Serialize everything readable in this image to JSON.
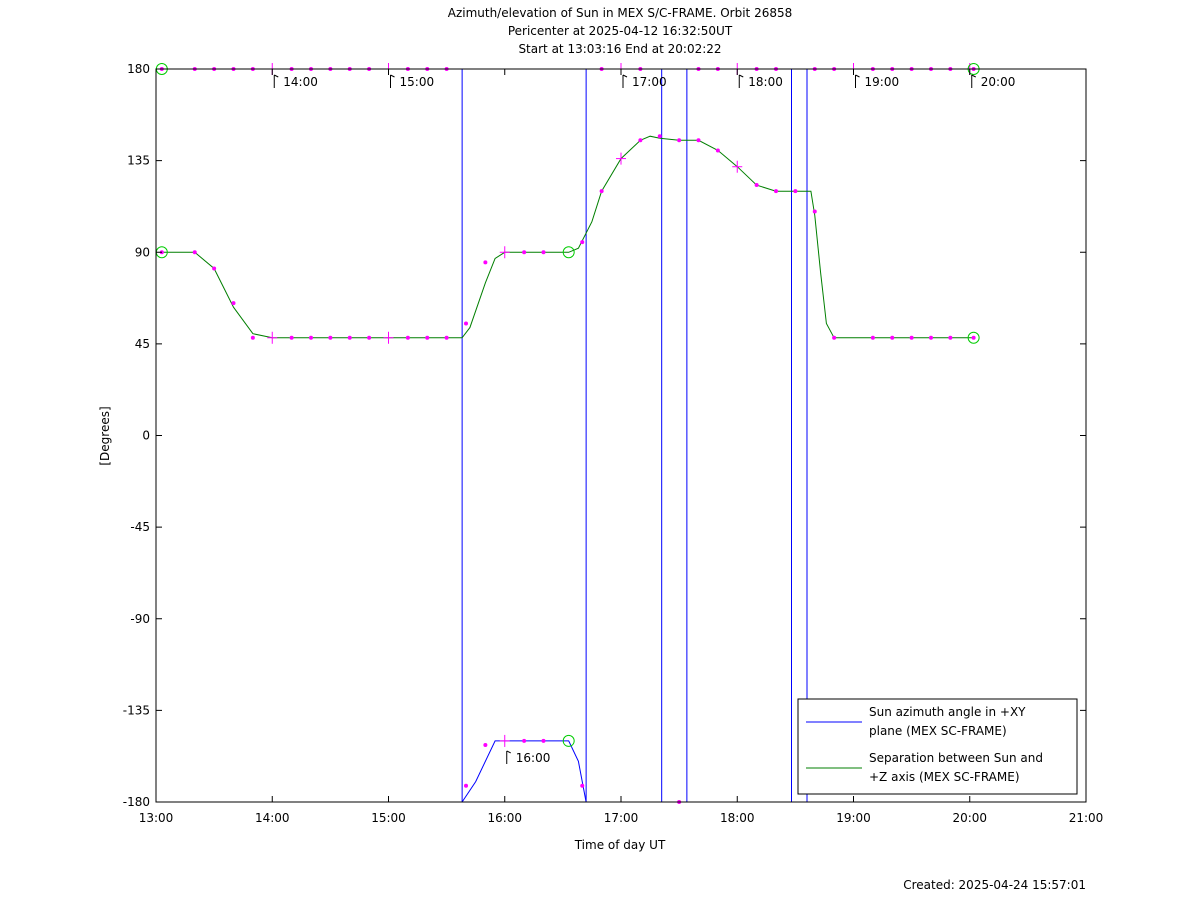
{
  "chart_data": {
    "type": "line",
    "title_lines": [
      "Azimuth/elevation of Sun in MEX S/C-FRAME.  Orbit 26858",
      "Pericenter at 2025-04-12 16:32:50UT",
      "Start at 13:03:16 End at 20:02:22"
    ],
    "xlabel": "Time of day UT",
    "ylabel": "[Degrees]",
    "xlim": [
      "13:00",
      "21:00"
    ],
    "ylim": [
      -180,
      180
    ],
    "x_ticks": [
      "13:00",
      "14:00",
      "15:00",
      "16:00",
      "17:00",
      "18:00",
      "19:00",
      "20:00",
      "21:00"
    ],
    "y_ticks": [
      180,
      135,
      90,
      45,
      0,
      -45,
      -90,
      -135,
      -180
    ],
    "hour_annotations": [
      {
        "label": "14:00",
        "time": "14:00",
        "value": 180
      },
      {
        "label": "15:00",
        "time": "15:00",
        "value": 180
      },
      {
        "label": "16:00",
        "time": "16:00",
        "value": -152
      },
      {
        "label": "17:00",
        "time": "17:00",
        "value": 180
      },
      {
        "label": "18:00",
        "time": "18:00",
        "value": 180
      },
      {
        "label": "19:00",
        "time": "19:00",
        "value": 180
      },
      {
        "label": "20:00",
        "time": "20:00",
        "value": 180
      }
    ],
    "legend": {
      "placement": "bottom-right",
      "entries": [
        {
          "line1": "Sun azimuth angle in +XY",
          "line2": "plane (MEX SC-FRAME)",
          "color": "#0000ff"
        },
        {
          "line1": "Separation between Sun and",
          "line2": "+Z axis (MEX SC-FRAME)",
          "color": "#007f00"
        }
      ]
    },
    "series": [
      {
        "color": "#0000ff",
        "segments": [
          {
            "x": [
              "13:03",
              "13:20",
              "13:40",
              "14:00",
              "14:20",
              "14:40",
              "15:00",
              "15:20",
              "15:38"
            ],
            "y": [
              180,
              180,
              180,
              180,
              180,
              180,
              180,
              180,
              180
            ]
          },
          {
            "x": [
              "15:38",
              "15:45",
              "15:55",
              "16:00",
              "16:20",
              "16:33",
              "16:38",
              "16:42"
            ],
            "y": [
              -180,
              -170,
              -150,
              -150,
              -150,
              -150,
              -160,
              -180
            ]
          },
          {
            "x": [
              "16:43",
              "17:00",
              "17:20",
              "17:21"
            ],
            "y": [
              180,
              180,
              180,
              180
            ]
          },
          {
            "x": [
              "17:21",
              "17:30",
              "17:34"
            ],
            "y": [
              -180,
              -180,
              -180
            ]
          },
          {
            "x": [
              "17:35",
              "17:50",
              "18:00",
              "18:20",
              "18:28"
            ],
            "y": [
              180,
              180,
              180,
              180,
              180
            ]
          },
          {
            "x": [
              "18:28",
              "18:36"
            ],
            "y": [
              -180,
              -180
            ]
          },
          {
            "x": [
              "18:37",
              "19:00",
              "19:20",
              "19:40",
              "20:02"
            ],
            "y": [
              180,
              180,
              180,
              180,
              180
            ]
          }
        ],
        "jumps": [
          "15:38",
          "16:42",
          "17:21",
          "17:34",
          "18:28",
          "18:36"
        ]
      },
      {
        "color": "#007f00",
        "x": [
          "13:03",
          "13:10",
          "13:15",
          "13:20",
          "13:30",
          "13:40",
          "13:50",
          "14:00",
          "14:30",
          "15:00",
          "15:30",
          "15:38",
          "15:42",
          "15:50",
          "15:55",
          "16:00",
          "16:30",
          "16:33",
          "16:38",
          "16:45",
          "16:50",
          "17:00",
          "17:10",
          "17:15",
          "17:20",
          "17:30",
          "17:40",
          "17:50",
          "18:00",
          "18:10",
          "18:20",
          "18:30",
          "18:38",
          "18:40",
          "18:43",
          "18:46",
          "18:50",
          "19:00",
          "19:30",
          "20:00",
          "20:02"
        ],
        "y": [
          90,
          90,
          90,
          90,
          82,
          63,
          50,
          48,
          48,
          48,
          48,
          48,
          53,
          75,
          87,
          90,
          90,
          90,
          92,
          105,
          120,
          136,
          145,
          147,
          146,
          145,
          145,
          140,
          132,
          123,
          120,
          120,
          120,
          108,
          80,
          55,
          48,
          48,
          48,
          48,
          48
        ]
      }
    ],
    "markers": {
      "color": "#ff00ff",
      "points": [
        {
          "time": "13:03",
          "value": 180
        },
        {
          "time": "13:20",
          "value": 180
        },
        {
          "time": "13:30",
          "value": 180
        },
        {
          "time": "13:40",
          "value": 180
        },
        {
          "time": "13:50",
          "value": 180
        },
        {
          "time": "14:10",
          "value": 180
        },
        {
          "time": "14:20",
          "value": 180
        },
        {
          "time": "14:30",
          "value": 180
        },
        {
          "time": "14:40",
          "value": 180
        },
        {
          "time": "14:50",
          "value": 180
        },
        {
          "time": "15:10",
          "value": 180
        },
        {
          "time": "15:20",
          "value": 180
        },
        {
          "time": "15:30",
          "value": 180
        },
        {
          "time": "16:50",
          "value": 180
        },
        {
          "time": "17:10",
          "value": 180
        },
        {
          "time": "17:40",
          "value": 180
        },
        {
          "time": "17:50",
          "value": 180
        },
        {
          "time": "18:10",
          "value": 180
        },
        {
          "time": "18:20",
          "value": 180
        },
        {
          "time": "18:40",
          "value": 180
        },
        {
          "time": "18:50",
          "value": 180
        },
        {
          "time": "19:10",
          "value": 180
        },
        {
          "time": "19:20",
          "value": 180
        },
        {
          "time": "19:30",
          "value": 180
        },
        {
          "time": "19:40",
          "value": 180
        },
        {
          "time": "19:50",
          "value": 180
        },
        {
          "time": "20:02",
          "value": 180
        },
        {
          "time": "15:40",
          "value": -172
        },
        {
          "time": "15:50",
          "value": -152
        },
        {
          "time": "16:10",
          "value": -150
        },
        {
          "time": "16:20",
          "value": -150
        },
        {
          "time": "16:40",
          "value": -172
        },
        {
          "time": "17:30",
          "value": -180
        },
        {
          "time": "13:03",
          "value": 90
        },
        {
          "time": "13:20",
          "value": 90
        },
        {
          "time": "13:30",
          "value": 82
        },
        {
          "time": "13:40",
          "value": 65
        },
        {
          "time": "13:50",
          "value": 48
        },
        {
          "time": "14:10",
          "value": 48
        },
        {
          "time": "14:20",
          "value": 48
        },
        {
          "time": "14:30",
          "value": 48
        },
        {
          "time": "14:40",
          "value": 48
        },
        {
          "time": "14:50",
          "value": 48
        },
        {
          "time": "15:10",
          "value": 48
        },
        {
          "time": "15:20",
          "value": 48
        },
        {
          "time": "15:30",
          "value": 48
        },
        {
          "time": "15:40",
          "value": 55
        },
        {
          "time": "15:50",
          "value": 85
        },
        {
          "time": "16:10",
          "value": 90
        },
        {
          "time": "16:20",
          "value": 90
        },
        {
          "time": "16:40",
          "value": 95
        },
        {
          "time": "16:50",
          "value": 120
        },
        {
          "time": "17:10",
          "value": 145
        },
        {
          "time": "17:20",
          "value": 147
        },
        {
          "time": "17:30",
          "value": 145
        },
        {
          "time": "17:40",
          "value": 145
        },
        {
          "time": "17:50",
          "value": 140
        },
        {
          "time": "18:10",
          "value": 123
        },
        {
          "time": "18:20",
          "value": 120
        },
        {
          "time": "18:30",
          "value": 120
        },
        {
          "time": "18:40",
          "value": 110
        },
        {
          "time": "18:50",
          "value": 48
        },
        {
          "time": "19:10",
          "value": 48
        },
        {
          "time": "19:20",
          "value": 48
        },
        {
          "time": "19:30",
          "value": 48
        },
        {
          "time": "19:40",
          "value": 48
        },
        {
          "time": "19:50",
          "value": 48
        },
        {
          "time": "20:02",
          "value": 48
        }
      ],
      "hour_crosses": [
        {
          "time": "14:00",
          "value": 180
        },
        {
          "time": "15:00",
          "value": 180
        },
        {
          "time": "16:00",
          "value": -150
        },
        {
          "time": "17:00",
          "value": 180
        },
        {
          "time": "18:00",
          "value": 180
        },
        {
          "time": "19:00",
          "value": 180
        },
        {
          "time": "20:00",
          "value": 180
        },
        {
          "time": "14:00",
          "value": 48
        },
        {
          "time": "15:00",
          "value": 48
        },
        {
          "time": "16:00",
          "value": 90
        },
        {
          "time": "17:00",
          "value": 136
        },
        {
          "time": "18:00",
          "value": 132
        }
      ],
      "circles": [
        {
          "time": "13:03",
          "value": 180
        },
        {
          "time": "13:03",
          "value": 90
        },
        {
          "time": "20:02",
          "value": 180
        },
        {
          "time": "20:02",
          "value": 48
        },
        {
          "time": "16:33",
          "value": 90
        },
        {
          "time": "16:33",
          "value": -150
        }
      ],
      "circle_color": "#00cc00"
    },
    "footer": "Created: 2025-04-24 15:57:01"
  }
}
